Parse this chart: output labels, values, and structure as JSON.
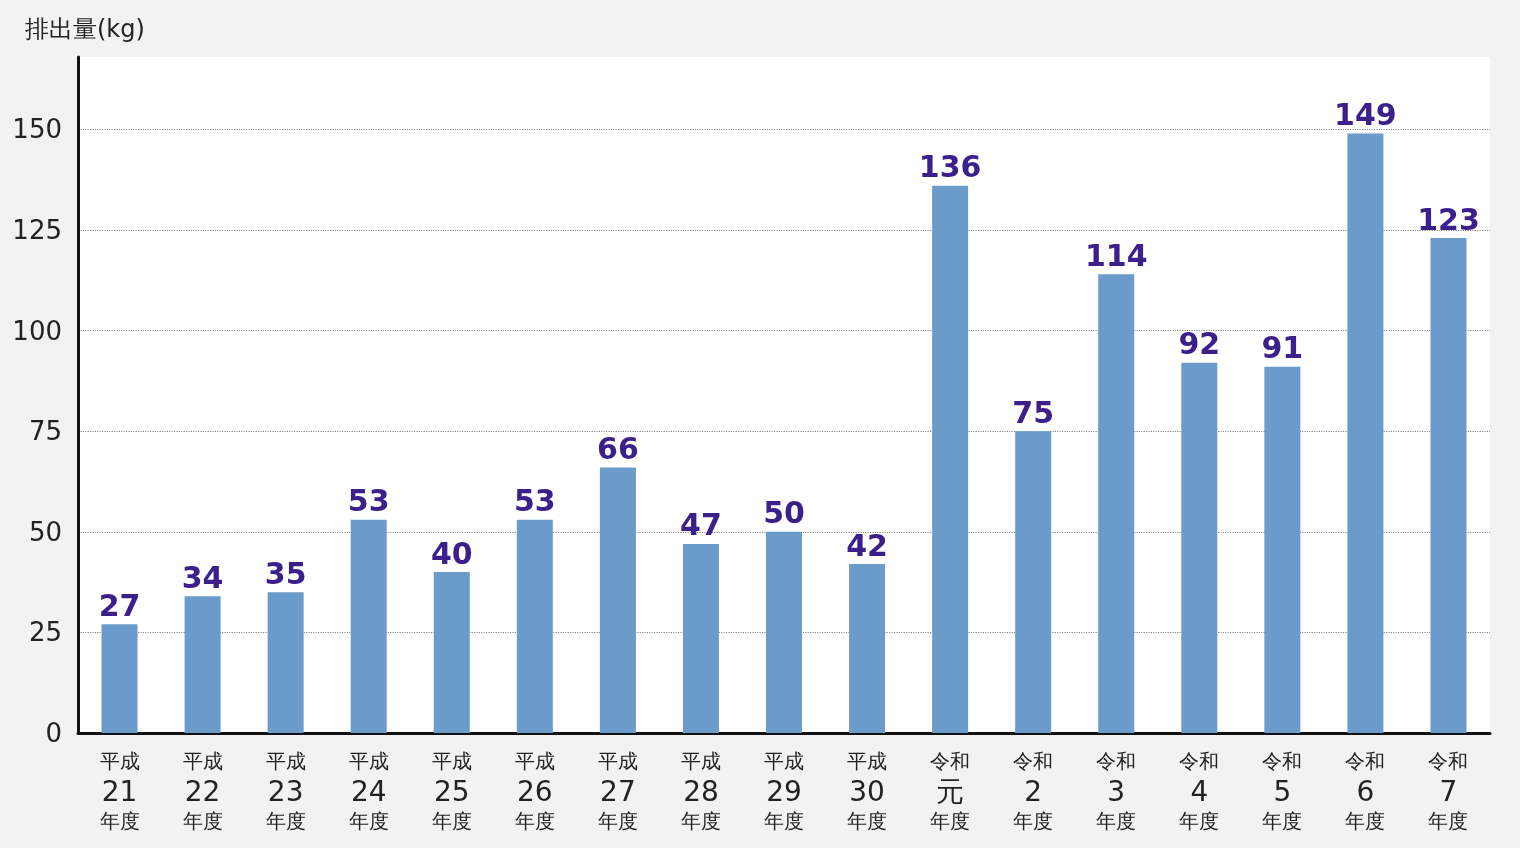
{
  "chart_data": {
    "type": "bar",
    "ylabel": "排出量(kg)",
    "categories": [
      "平成21年度",
      "平成22年度",
      "平成23年度",
      "平成24年度",
      "平成25年度",
      "平成26年度",
      "平成27年度",
      "平成28年度",
      "平成29年度",
      "平成30年度",
      "令和元年度",
      "令和2年度",
      "令和3年度",
      "令和4年度",
      "令和5年度",
      "令和6年度",
      "令和7年度"
    ],
    "values": [
      27,
      34,
      35,
      53,
      40,
      53,
      66,
      47,
      50,
      42,
      136,
      75,
      114,
      92,
      91,
      149,
      123
    ],
    "color": "#6b9bcb",
    "ylim": [
      0,
      168
    ],
    "yticks": [
      0,
      25,
      50,
      75,
      100,
      125,
      150
    ],
    "grid": "y",
    "data_labels": true
  }
}
